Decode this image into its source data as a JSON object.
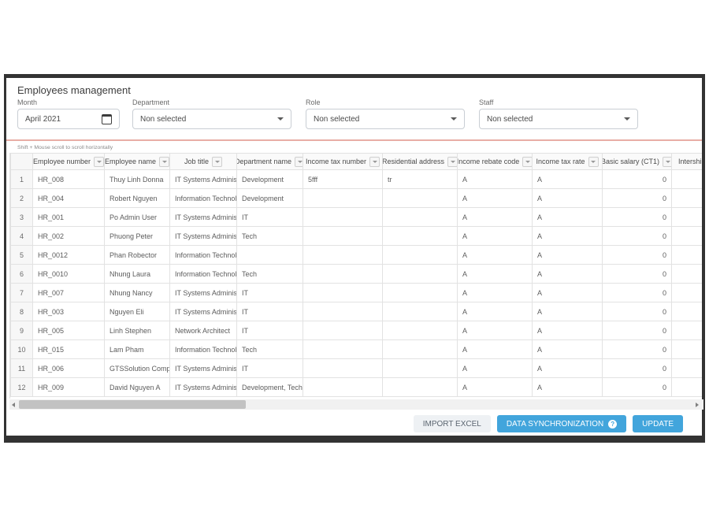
{
  "page": {
    "title": "Employees management"
  },
  "filters": {
    "month": {
      "label": "Month",
      "value": "April 2021"
    },
    "department": {
      "label": "Department",
      "value": "Non selected"
    },
    "role": {
      "label": "Role",
      "value": "Non selected"
    },
    "staff": {
      "label": "Staff",
      "value": "Non selected"
    }
  },
  "table": {
    "hint": "Shift + Mouse scroll to scroll horizontally",
    "columns": [
      "Employee number",
      "Employee name",
      "Job title",
      "Department name",
      "Income tax number",
      "Residential address",
      "Income rebate code",
      "Income tax rate",
      "Basic salary (CT1)",
      "Intership salary"
    ],
    "rows": [
      {
        "index": "1",
        "employee_number": "HR_008",
        "employee_name": "Thuy Linh Donna",
        "job_title": "IT Systems Administrator",
        "department_name": "Development",
        "income_tax_number": "5fff",
        "residential_address": "tr",
        "income_rebate_code": "A",
        "income_tax_rate": "A",
        "basic_salary": "0"
      },
      {
        "index": "2",
        "employee_number": "HR_004",
        "employee_name": "Robert Nguyen",
        "job_title": "Information Technology",
        "department_name": "Development",
        "income_tax_number": "",
        "residential_address": "",
        "income_rebate_code": "A",
        "income_tax_rate": "A",
        "basic_salary": "0"
      },
      {
        "index": "3",
        "employee_number": "HR_001",
        "employee_name": "Po Admin User",
        "job_title": "IT Systems Administrator",
        "department_name": "IT",
        "income_tax_number": "",
        "residential_address": "",
        "income_rebate_code": "A",
        "income_tax_rate": "A",
        "basic_salary": "0"
      },
      {
        "index": "4",
        "employee_number": "HR_002",
        "employee_name": "Phuong Peter",
        "job_title": "IT Systems Administrator",
        "department_name": "Tech",
        "income_tax_number": "",
        "residential_address": "",
        "income_rebate_code": "A",
        "income_tax_rate": "A",
        "basic_salary": "0"
      },
      {
        "index": "5",
        "employee_number": "HR_0012",
        "employee_name": "Phan Robector",
        "job_title": "Information Technology",
        "department_name": "",
        "income_tax_number": "",
        "residential_address": "",
        "income_rebate_code": "A",
        "income_tax_rate": "A",
        "basic_salary": "0"
      },
      {
        "index": "6",
        "employee_number": "HR_0010",
        "employee_name": "Nhung Laura",
        "job_title": "Information Technology",
        "department_name": "Tech",
        "income_tax_number": "",
        "residential_address": "",
        "income_rebate_code": "A",
        "income_tax_rate": "A",
        "basic_salary": "0"
      },
      {
        "index": "7",
        "employee_number": "HR_007",
        "employee_name": "Nhung Nancy",
        "job_title": "IT Systems Administrator",
        "department_name": "IT",
        "income_tax_number": "",
        "residential_address": "",
        "income_rebate_code": "A",
        "income_tax_rate": "A",
        "basic_salary": "0"
      },
      {
        "index": "8",
        "employee_number": "HR_003",
        "employee_name": "Nguyen Eli",
        "job_title": "IT Systems Administrator",
        "department_name": "IT",
        "income_tax_number": "",
        "residential_address": "",
        "income_rebate_code": "A",
        "income_tax_rate": "A",
        "basic_salary": "0"
      },
      {
        "index": "9",
        "employee_number": "HR_005",
        "employee_name": "Linh Stephen",
        "job_title": "Network Architect",
        "department_name": "IT",
        "income_tax_number": "",
        "residential_address": "",
        "income_rebate_code": "A",
        "income_tax_rate": "A",
        "basic_salary": "0"
      },
      {
        "index": "10",
        "employee_number": "HR_015",
        "employee_name": "Lam Pham",
        "job_title": "Information Technology",
        "department_name": "Tech",
        "income_tax_number": "",
        "residential_address": "",
        "income_rebate_code": "A",
        "income_tax_rate": "A",
        "basic_salary": "0"
      },
      {
        "index": "11",
        "employee_number": "HR_006",
        "employee_name": "GTSSolution Company",
        "job_title": "IT Systems Administrator",
        "department_name": "IT",
        "income_tax_number": "",
        "residential_address": "",
        "income_rebate_code": "A",
        "income_tax_rate": "A",
        "basic_salary": "0"
      },
      {
        "index": "12",
        "employee_number": "HR_009",
        "employee_name": "David Nguyen A",
        "job_title": "IT Systems Administrator",
        "department_name": "Development, Tech",
        "income_tax_number": "",
        "residential_address": "",
        "income_rebate_code": "A",
        "income_tax_rate": "A",
        "basic_salary": "0"
      }
    ]
  },
  "footer": {
    "import_excel": "IMPORT EXCEL",
    "data_synchronization": "DATA SYNCHRONIZATION",
    "update": "UPDATE"
  },
  "colors": {
    "accent_blue": "#42a5dc",
    "divider_salmon": "#e8aea6",
    "frame_dark": "#333333"
  }
}
